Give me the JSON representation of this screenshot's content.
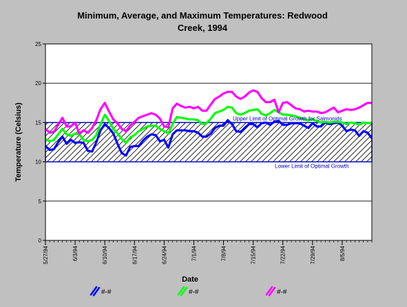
{
  "chart_data": {
    "type": "line",
    "title_line1": "Minimum, Average, and Maximum Temperatures:  Redwood",
    "title_line2": "Creek, 1994",
    "xlabel": "Date",
    "ylabel": "Temperature (Celsius)",
    "ylim": [
      0,
      25
    ],
    "yticks": [
      0,
      5,
      10,
      15,
      20,
      25
    ],
    "x_start": "5/27/94",
    "x_end": "8/12/94",
    "xticks": [
      "5/27/94",
      "6/3/94",
      "6/10/94",
      "6/17/94",
      "6/24/94",
      "7/1/94",
      "7/8/94",
      "7/15/94",
      "7/22/94",
      "7/29/94",
      "8/5/94"
    ],
    "grid": "horizontal",
    "optimal_band": {
      "lower": 10,
      "upper": 15,
      "upper_label": "Upper Limit of Optimal Growth for Salmonids",
      "lower_label": "Lower Limit of Optimal Growth"
    },
    "series": [
      {
        "name": "#-#",
        "color": "#0000ff",
        "x": [
          "5/27/94",
          "5/28/94",
          "5/29/94",
          "5/30/94",
          "5/31/94",
          "6/1/94",
          "6/2/94",
          "6/3/94",
          "6/4/94",
          "6/5/94",
          "6/6/94",
          "6/7/94",
          "6/8/94",
          "6/9/94",
          "6/10/94",
          "6/11/94",
          "6/12/94",
          "6/13/94",
          "6/14/94",
          "6/15/94",
          "6/16/94",
          "6/17/94",
          "6/18/94",
          "6/19/94",
          "6/20/94",
          "6/21/94",
          "6/22/94",
          "6/23/94",
          "6/24/94",
          "6/25/94",
          "6/26/94",
          "6/27/94",
          "6/28/94",
          "6/29/94",
          "6/30/94",
          "7/1/94",
          "7/2/94",
          "7/3/94",
          "7/4/94",
          "7/5/94",
          "7/6/94",
          "7/7/94",
          "7/8/94",
          "7/9/94",
          "7/10/94",
          "7/11/94",
          "7/12/94",
          "7/13/94",
          "7/14/94",
          "7/15/94",
          "7/16/94",
          "7/17/94",
          "7/18/94",
          "7/19/94",
          "7/20/94",
          "7/21/94",
          "7/22/94",
          "7/23/94",
          "7/24/94",
          "7/25/94",
          "7/26/94",
          "7/27/94",
          "7/28/94",
          "7/29/94",
          "7/30/94",
          "7/31/94",
          "8/1/94",
          "8/2/94",
          "8/3/94",
          "8/4/94",
          "8/5/94",
          "8/6/94",
          "8/7/94",
          "8/8/94",
          "8/9/94",
          "8/10/94",
          "8/11/94",
          "8/12/94"
        ],
        "values": [
          12.0,
          11.5,
          11.6,
          12.5,
          13.2,
          12.3,
          12.8,
          12.4,
          12.5,
          12.4,
          11.4,
          11.3,
          12.5,
          14.0,
          14.8,
          14.3,
          13.6,
          12.3,
          11.1,
          10.8,
          11.9,
          12.0,
          12.0,
          12.7,
          13.2,
          13.5,
          13.4,
          12.6,
          12.8,
          11.8,
          13.5,
          14.0,
          14.0,
          14.0,
          13.9,
          13.9,
          13.7,
          13.2,
          13.2,
          13.6,
          14.3,
          14.6,
          14.6,
          15.3,
          14.8,
          13.9,
          13.8,
          14.3,
          14.8,
          14.8,
          14.4,
          14.9,
          15.0,
          14.7,
          15.1,
          15.2,
          14.7,
          14.7,
          14.9,
          14.9,
          14.9,
          14.6,
          14.3,
          14.9,
          14.5,
          14.5,
          15.0,
          14.8,
          14.9,
          15.0,
          14.6,
          13.9,
          14.1,
          14.0,
          13.3,
          13.9,
          13.7,
          13.0
        ]
      },
      {
        "name": "#-#",
        "color": "#00ff00",
        "x": [
          "5/27/94",
          "5/28/94",
          "5/29/94",
          "5/30/94",
          "5/31/94",
          "6/1/94",
          "6/2/94",
          "6/3/94",
          "6/4/94",
          "6/5/94",
          "6/6/94",
          "6/7/94",
          "6/8/94",
          "6/9/94",
          "6/10/94",
          "6/11/94",
          "6/12/94",
          "6/13/94",
          "6/14/94",
          "6/15/94",
          "6/16/94",
          "6/17/94",
          "6/18/94",
          "6/19/94",
          "6/20/94",
          "6/21/94",
          "6/22/94",
          "6/23/94",
          "6/24/94",
          "6/25/94",
          "6/26/94",
          "6/27/94",
          "6/28/94",
          "6/29/94",
          "6/30/94",
          "7/1/94",
          "7/2/94",
          "7/3/94",
          "7/4/94",
          "7/5/94",
          "7/6/94",
          "7/7/94",
          "7/8/94",
          "7/9/94",
          "7/10/94",
          "7/11/94",
          "7/12/94",
          "7/13/94",
          "7/14/94",
          "7/15/94",
          "7/16/94",
          "7/17/94",
          "7/18/94",
          "7/19/94",
          "7/20/94",
          "7/21/94",
          "7/22/94",
          "7/23/94",
          "7/24/94",
          "7/25/94",
          "7/26/94",
          "7/27/94",
          "7/28/94",
          "7/29/94",
          "7/30/94",
          "7/31/94",
          "8/1/94",
          "8/2/94",
          "8/3/94",
          "8/4/94",
          "8/5/94",
          "8/6/94",
          "8/7/94",
          "8/8/94",
          "8/9/94",
          "8/10/94",
          "8/11/94",
          "8/12/94"
        ],
        "values": [
          12.9,
          12.6,
          12.8,
          13.5,
          14.2,
          13.5,
          13.3,
          13.6,
          13.5,
          12.8,
          12.6,
          12.8,
          13.4,
          14.8,
          16.0,
          15.2,
          14.2,
          13.6,
          12.9,
          12.4,
          13.1,
          13.4,
          13.9,
          14.2,
          14.5,
          14.6,
          14.6,
          14.2,
          13.9,
          13.6,
          14.8,
          15.7,
          15.6,
          15.5,
          15.4,
          15.4,
          15.3,
          14.8,
          14.9,
          15.5,
          16.2,
          16.4,
          16.6,
          17.0,
          16.9,
          16.2,
          16.0,
          16.2,
          16.5,
          16.6,
          16.7,
          16.1,
          15.9,
          16.2,
          16.6,
          16.3,
          16.0,
          16.0,
          15.9,
          15.8,
          15.6,
          15.4,
          15.3,
          15.4,
          15.2,
          15.0,
          15.1,
          15.0,
          15.1,
          15.1,
          15.0,
          14.8,
          15.0,
          14.9,
          14.7,
          15.0,
          14.9,
          15.0
        ]
      },
      {
        "name": "#-#",
        "color": "#ff00ff",
        "x": [
          "5/27/94",
          "5/28/94",
          "5/29/94",
          "5/30/94",
          "5/31/94",
          "6/1/94",
          "6/2/94",
          "6/3/94",
          "6/4/94",
          "6/5/94",
          "6/6/94",
          "6/7/94",
          "6/8/94",
          "6/9/94",
          "6/10/94",
          "6/11/94",
          "6/12/94",
          "6/13/94",
          "6/14/94",
          "6/15/94",
          "6/16/94",
          "6/17/94",
          "6/18/94",
          "6/19/94",
          "6/20/94",
          "6/21/94",
          "6/22/94",
          "6/23/94",
          "6/24/94",
          "6/25/94",
          "6/26/94",
          "6/27/94",
          "6/28/94",
          "6/29/94",
          "6/30/94",
          "7/1/94",
          "7/2/94",
          "7/3/94",
          "7/4/94",
          "7/5/94",
          "7/6/94",
          "7/7/94",
          "7/8/94",
          "7/9/94",
          "7/10/94",
          "7/11/94",
          "7/12/94",
          "7/13/94",
          "7/14/94",
          "7/15/94",
          "7/16/94",
          "7/17/94",
          "7/18/94",
          "7/19/94",
          "7/20/94",
          "7/21/94",
          "7/22/94",
          "7/23/94",
          "7/24/94",
          "7/25/94",
          "7/26/94",
          "7/27/94",
          "7/28/94",
          "7/29/94",
          "7/30/94",
          "7/31/94",
          "8/1/94",
          "8/2/94",
          "8/3/94",
          "8/4/94",
          "8/5/94",
          "8/6/94",
          "8/7/94",
          "8/8/94",
          "8/9/94",
          "8/10/94",
          "8/11/94",
          "8/12/94"
        ],
        "values": [
          14.2,
          13.7,
          13.8,
          14.7,
          15.6,
          14.5,
          14.5,
          15.0,
          13.6,
          14.0,
          13.7,
          14.3,
          15.3,
          16.7,
          17.5,
          16.4,
          15.4,
          14.9,
          14.2,
          13.9,
          14.6,
          15.1,
          15.6,
          15.8,
          16.0,
          16.2,
          16.0,
          15.5,
          14.5,
          14.4,
          16.8,
          17.4,
          17.1,
          16.9,
          17.0,
          16.8,
          17.0,
          16.5,
          16.5,
          17.3,
          18.0,
          18.3,
          18.7,
          18.9,
          18.9,
          18.3,
          18.0,
          18.3,
          18.8,
          19.1,
          18.9,
          18.1,
          17.6,
          17.6,
          17.9,
          16.3,
          17.5,
          17.6,
          17.2,
          16.8,
          16.7,
          16.4,
          16.5,
          16.4,
          16.4,
          16.2,
          16.3,
          16.6,
          16.9,
          16.3,
          16.5,
          16.7,
          16.6,
          16.7,
          16.9,
          17.2,
          17.5,
          17.5
        ]
      }
    ]
  }
}
